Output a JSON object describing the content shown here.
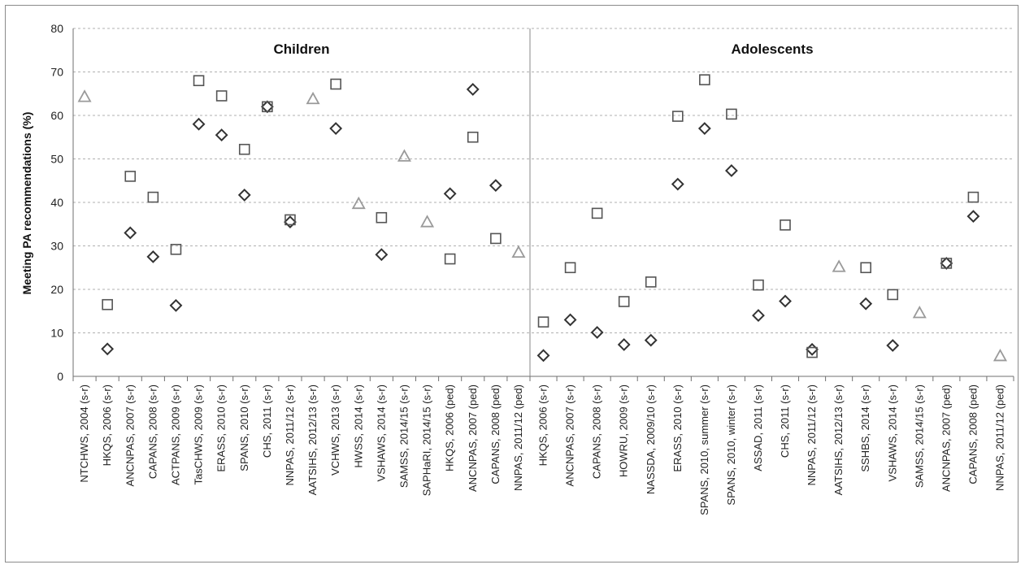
{
  "chart_data": {
    "type": "scatter",
    "ylabel": "Meeting PA recommendations (%)",
    "ylim": [
      0,
      80
    ],
    "yticks": [
      0,
      10,
      20,
      30,
      40,
      50,
      60,
      70,
      80
    ],
    "grid": true,
    "marker_legend": {
      "square": "square markers",
      "diamond": "diamond markers",
      "triangle": "triangle markers"
    },
    "colors": {
      "square": "#555555",
      "diamond": "#333333",
      "triangle": "#9a9a9a",
      "grid": "#b0b0b0"
    },
    "panels": [
      {
        "title": "Children",
        "categories": [
          "NTCHWS, 2004 (s-r)",
          "HKQS, 2006 (s-r)",
          "ANCNPAS, 2007 (s-r)",
          "CAPANS, 2008 (s-r)",
          "ACTPANS, 2009 (s-r)",
          "TasCHWS, 2009 (s-r)",
          "ERASS, 2010 (s-r)",
          "SPANS, 2010 (s-r)",
          "CHS, 2011 (s-r)",
          "NNPAS, 2011/12 (s-r)",
          "AATSIHS, 2012/13 (s-r)",
          "VCHWS, 2013 (s-r)",
          "HWSS, 2014 (s-r)",
          "VSHAWS, 2014 (s-r)",
          "SAMSS, 2014/15 (s-r)",
          "SAPHaRI, 2014/15 (s-r)",
          "HKQS, 2006 (ped)",
          "ANCNPAS, 2007 (ped)",
          "CAPANS, 2008 (ped)",
          "NNPAS, 2011/12 (ped)"
        ],
        "square": [
          null,
          16.5,
          46,
          41.2,
          29.2,
          68,
          64.5,
          52.2,
          62,
          36,
          null,
          67.2,
          null,
          36.5,
          null,
          null,
          27,
          55,
          31.7,
          null
        ],
        "diamond": [
          null,
          6.3,
          33,
          27.5,
          16.3,
          58,
          55.5,
          41.7,
          62,
          35.5,
          null,
          57,
          null,
          28,
          null,
          null,
          42,
          66,
          43.9,
          null
        ],
        "triangle": [
          64.3,
          null,
          null,
          null,
          null,
          null,
          null,
          null,
          null,
          null,
          63.8,
          null,
          39.7,
          null,
          50.6,
          35.5,
          null,
          null,
          null,
          28.5
        ]
      },
      {
        "title": "Adolescents",
        "categories": [
          "HKQS, 2006 (s-r)",
          "ANCNPAS, 2007 (s-r)",
          "CAPANS, 2008 (s-r)",
          "HOWRU, 2009 (s-r)",
          "NASSDA, 2009/10 (s-r)",
          "ERASS, 2010 (s-r)",
          "SPANS, 2010, summer (s-r)",
          "SPANS, 2010, winter (s-r)",
          "ASSAD, 2011 (s-r)",
          "CHS, 2011 (s-r)",
          "NNPAS, 2011/12 (s-r)",
          "AATSIHS, 2012/13 (s-r)",
          "SSHBS, 2014 (s-r)",
          "VSHAWS, 2014 (s-r)",
          "SAMSS, 2014/15 (s-r)",
          "ANCNPAS, 2007 (ped)",
          "CAPANS, 2008 (ped)",
          "NNPAS, 2011/12 (ped)"
        ],
        "square": [
          12.5,
          25,
          37.5,
          17.2,
          21.7,
          59.8,
          68.2,
          60.3,
          21,
          34.8,
          5.5,
          null,
          25,
          18.8,
          null,
          26,
          41.2,
          null
        ],
        "diamond": [
          4.8,
          13,
          10.1,
          7.3,
          8.3,
          44.2,
          57,
          47.3,
          14,
          17.3,
          6.2,
          null,
          16.7,
          7.1,
          null,
          26,
          36.8,
          null
        ],
        "triangle": [
          null,
          null,
          null,
          null,
          null,
          null,
          null,
          null,
          null,
          null,
          null,
          25.2,
          null,
          null,
          14.6,
          null,
          null,
          4.7
        ]
      }
    ]
  }
}
